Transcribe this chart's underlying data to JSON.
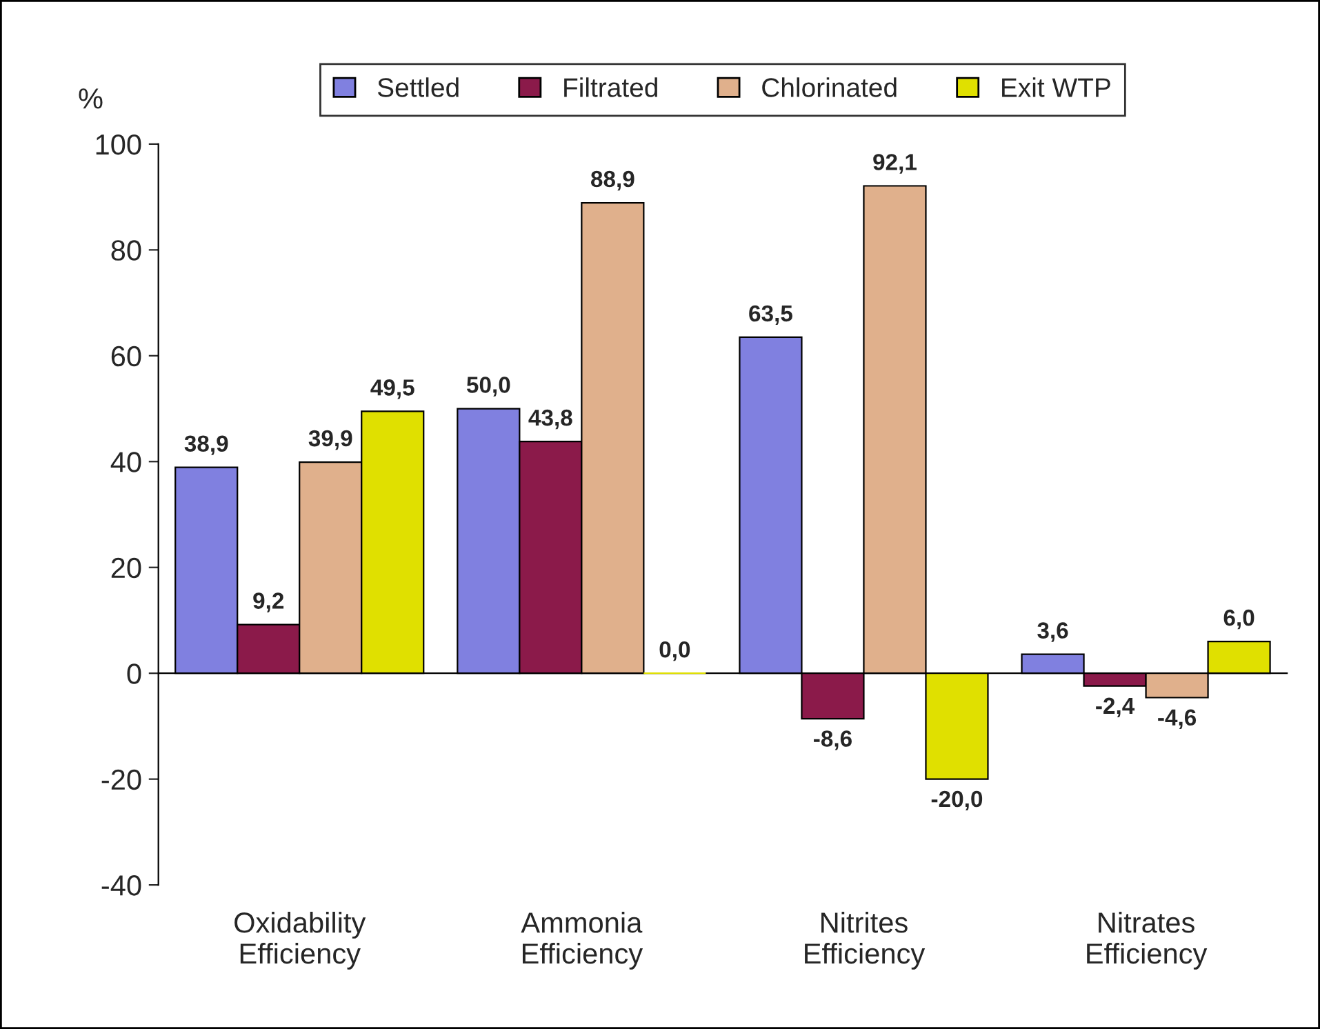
{
  "chart_data": {
    "type": "bar",
    "ylabel": "%",
    "categories": [
      "Oxidability\nEfficiency",
      "Ammonia\nEfficiency",
      "Nitrites\nEfficiency",
      "Nitrates\nEfficiency"
    ],
    "series": [
      {
        "name": "Settled",
        "color": "#8080e0",
        "values": [
          38.9,
          50.0,
          63.5,
          3.6
        ],
        "value_labels": [
          "38,9",
          "50,0",
          "63,5",
          "3,6"
        ]
      },
      {
        "name": "Filtrated",
        "color": "#8b1a4a",
        "values": [
          9.2,
          43.8,
          -8.6,
          -2.4
        ],
        "value_labels": [
          "9,2",
          "43,8",
          "-8,6",
          "-2,4"
        ]
      },
      {
        "name": "Chlorinated",
        "color": "#e0b08c",
        "values": [
          39.9,
          88.9,
          92.1,
          -4.6
        ],
        "value_labels": [
          "39,9",
          "88,9",
          "92,1",
          "-4,6"
        ]
      },
      {
        "name": "Exit WTP",
        "color": "#e0e000",
        "values": [
          49.5,
          0.0,
          -20.0,
          6.0
        ],
        "value_labels": [
          "49,5",
          "0,0",
          "-20,0",
          "6,0"
        ]
      }
    ],
    "ylim": [
      -40,
      100
    ],
    "yticks": [
      -40,
      -20,
      0,
      20,
      40,
      60,
      80,
      100
    ],
    "legend": "top"
  }
}
